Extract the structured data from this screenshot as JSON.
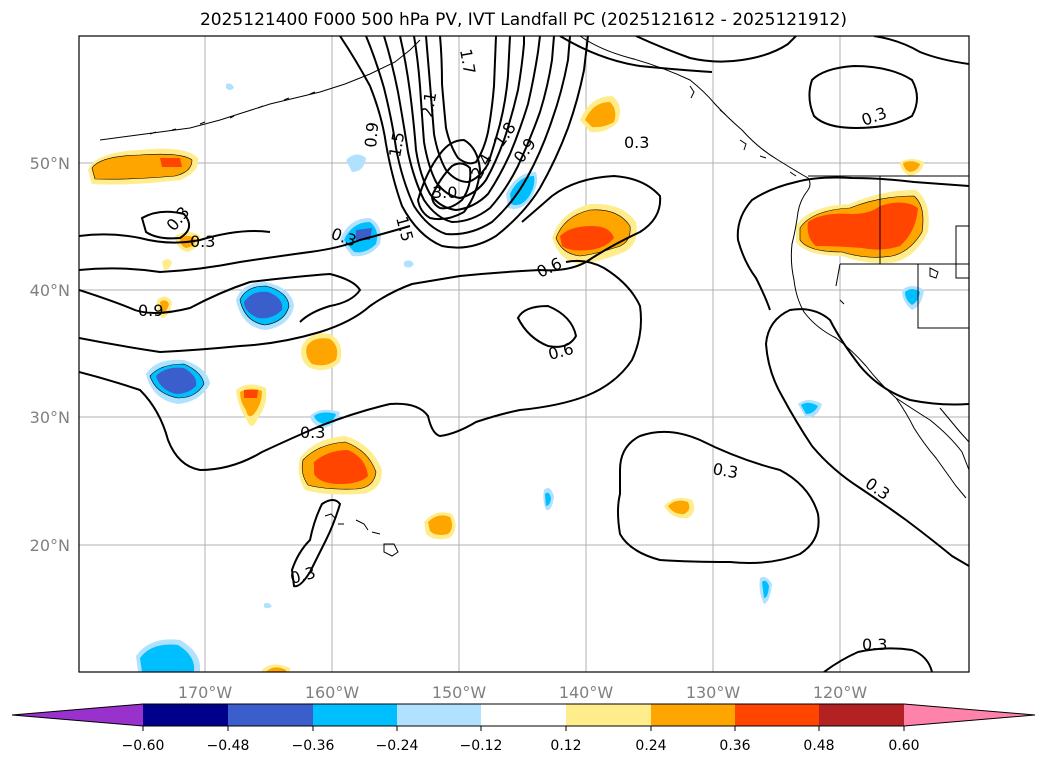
{
  "title": "2025121400 F000 500 hPa PV, IVT Landfall PC (2025121612 - 2025121912)",
  "lon_ticks": [
    "170°W",
    "160°W",
    "150°W",
    "140°W",
    "130°W",
    "120°W"
  ],
  "lat_ticks": [
    "50°N",
    "40°N",
    "30°N",
    "20°N"
  ],
  "colorbar": {
    "colors": [
      "#9932CC",
      "#00008B",
      "#3A5FCD",
      "#00BFFF",
      "#B0E2FF",
      "#FFFFFF",
      "#FFEC8B",
      "#FFA500",
      "#FF4500",
      "#B22222",
      "#FF82AB"
    ],
    "tick_labels": [
      "−0.60",
      "−0.48",
      "−0.36",
      "−0.24",
      "−0.12",
      "0.12",
      "0.24",
      "0.36",
      "0.48",
      "0.60"
    ]
  },
  "contour_labels": [
    "0.3",
    "0.3",
    "0.3",
    "0.9",
    "0.3",
    "0.3",
    "0.3",
    "0.3",
    "0.3",
    "0.3",
    "0.6",
    "0.6",
    "0.9",
    "1.8",
    "2.4",
    "2.1",
    "1.5",
    "1.7",
    "0.9",
    "3.0",
    "1.5",
    "0.3"
  ]
}
